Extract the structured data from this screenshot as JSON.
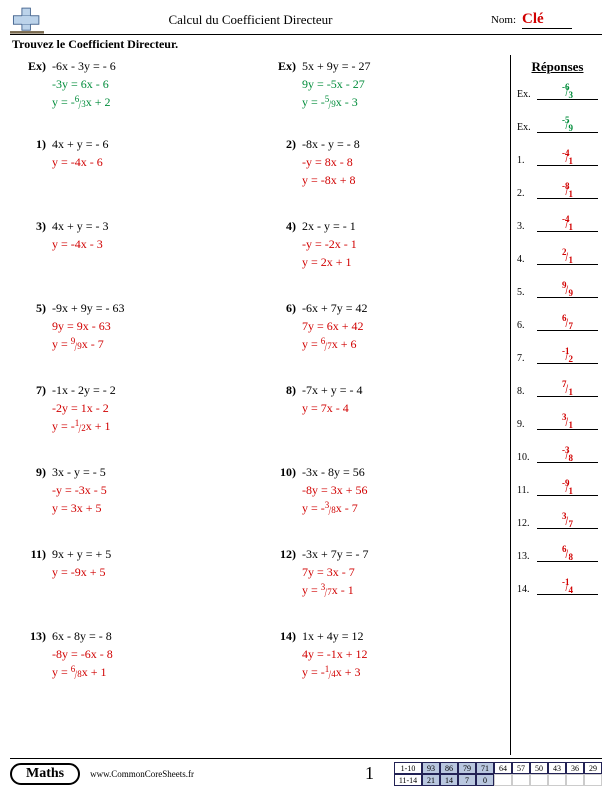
{
  "header": {
    "title": "Calcul du Coefficient Directeur",
    "nom_label": "Nom:",
    "nom_value": "Clé"
  },
  "instruction": "Trouvez le Coefficient Directeur.",
  "answers_title": "Réponses",
  "left_problems": [
    {
      "num": "Ex)",
      "eq": "-6x - 3y = - 6",
      "s1": "-3y = 6x - 6",
      "s1_color": "green",
      "s2_pre": "y = -",
      "s2_frac": [
        "6",
        "3"
      ],
      "s2_post": "x + 2",
      "s2_color": "green"
    },
    {
      "num": "1)",
      "eq": "4x + y = - 6",
      "s1": "y = -4x - 6",
      "s1_color": "red"
    },
    {
      "num": "3)",
      "eq": "4x + y = - 3",
      "s1": "y = -4x - 3",
      "s1_color": "red"
    },
    {
      "num": "5)",
      "eq": "-9x + 9y = - 63",
      "s1": "9y = 9x - 63",
      "s1_color": "red",
      "s2_pre": "y = ",
      "s2_frac": [
        "9",
        "9"
      ],
      "s2_post": "x - 7",
      "s2_color": "red"
    },
    {
      "num": "7)",
      "eq": "-1x - 2y = - 2",
      "s1": "-2y = 1x - 2",
      "s1_color": "red",
      "s2_pre": "y = -",
      "s2_frac": [
        "1",
        "2"
      ],
      "s2_post": "x + 1",
      "s2_color": "red"
    },
    {
      "num": "9)",
      "eq": "3x - y = - 5",
      "s1": "-y = -3x - 5",
      "s1_color": "red",
      "s2": "y = 3x + 5",
      "s2_color": "red"
    },
    {
      "num": "11)",
      "eq": "9x + y = + 5",
      "s1": "y = -9x + 5",
      "s1_color": "red"
    },
    {
      "num": "13)",
      "eq": "6x - 8y = - 8",
      "s1": "-8y = -6x - 8",
      "s1_color": "red",
      "s2_pre": "y = ",
      "s2_frac": [
        "6",
        "8"
      ],
      "s2_post": "x + 1",
      "s2_color": "red"
    }
  ],
  "right_problems": [
    {
      "num": "Ex)",
      "eq": "5x + 9y = - 27",
      "s1": "9y = -5x - 27",
      "s1_color": "green",
      "s2_pre": "y = -",
      "s2_frac": [
        "5",
        "9"
      ],
      "s2_post": "x - 3",
      "s2_color": "green"
    },
    {
      "num": "2)",
      "eq": "-8x - y = - 8",
      "s1": "-y = 8x - 8",
      "s1_color": "red",
      "s2": "y = -8x + 8",
      "s2_color": "red"
    },
    {
      "num": "4)",
      "eq": "2x - y = - 1",
      "s1": "-y = -2x - 1",
      "s1_color": "red",
      "s2": "y = 2x + 1",
      "s2_color": "red"
    },
    {
      "num": "6)",
      "eq": "-6x + 7y = 42",
      "s1": "7y = 6x + 42",
      "s1_color": "red",
      "s2_pre": "y = ",
      "s2_frac": [
        "6",
        "7"
      ],
      "s2_post": "x + 6",
      "s2_color": "red"
    },
    {
      "num": "8)",
      "eq": "-7x + y = - 4",
      "s1": "y = 7x - 4",
      "s1_color": "red"
    },
    {
      "num": "10)",
      "eq": "-3x - 8y = 56",
      "s1": "-8y = 3x + 56",
      "s1_color": "red",
      "s2_pre": "y = -",
      "s2_frac": [
        "3",
        "8"
      ],
      "s2_post": "x - 7",
      "s2_color": "red"
    },
    {
      "num": "12)",
      "eq": "-3x + 7y = - 7",
      "s1": "7y = 3x - 7",
      "s1_color": "red",
      "s2_pre": "y = ",
      "s2_frac": [
        "3",
        "7"
      ],
      "s2_post": "x - 1",
      "s2_color": "red"
    },
    {
      "num": "14)",
      "eq": "1x + 4y = 12",
      "s1": "4y = -1x + 12",
      "s1_color": "red",
      "s2_pre": "y = -",
      "s2_frac": [
        "1",
        "4"
      ],
      "s2_post": "x + 3",
      "s2_color": "red"
    }
  ],
  "answers": [
    {
      "label": "Ex.",
      "n": "-6",
      "d": "3",
      "green": true
    },
    {
      "label": "Ex.",
      "n": "-5",
      "d": "9",
      "green": true
    },
    {
      "label": "1.",
      "n": "-4",
      "d": "1"
    },
    {
      "label": "2.",
      "n": "-8",
      "d": "1"
    },
    {
      "label": "3.",
      "n": "-4",
      "d": "1"
    },
    {
      "label": "4.",
      "n": "2",
      "d": "1"
    },
    {
      "label": "5.",
      "n": "9",
      "d": "9"
    },
    {
      "label": "6.",
      "n": "6",
      "d": "7"
    },
    {
      "label": "7.",
      "n": "-1",
      "d": "2"
    },
    {
      "label": "8.",
      "n": "7",
      "d": "1"
    },
    {
      "label": "9.",
      "n": "3",
      "d": "1"
    },
    {
      "label": "10.",
      "n": "-3",
      "d": "8"
    },
    {
      "label": "11.",
      "n": "-9",
      "d": "1"
    },
    {
      "label": "12.",
      "n": "3",
      "d": "7"
    },
    {
      "label": "13.",
      "n": "6",
      "d": "8"
    },
    {
      "label": "14.",
      "n": "-1",
      "d": "4"
    }
  ],
  "footer": {
    "subject": "Maths",
    "url": "www.CommonCoreSheets.fr",
    "page_num": "1",
    "score_row1_label": "1-10",
    "score_row2_label": "11-14",
    "row1": [
      "93",
      "86",
      "79",
      "71",
      "64",
      "57",
      "50",
      "43",
      "36",
      "29"
    ],
    "row2": [
      "21",
      "14",
      "7",
      "0"
    ]
  },
  "colors": {
    "red": "#d10000",
    "green": "#008c3a",
    "shade": "#b9c7df"
  }
}
